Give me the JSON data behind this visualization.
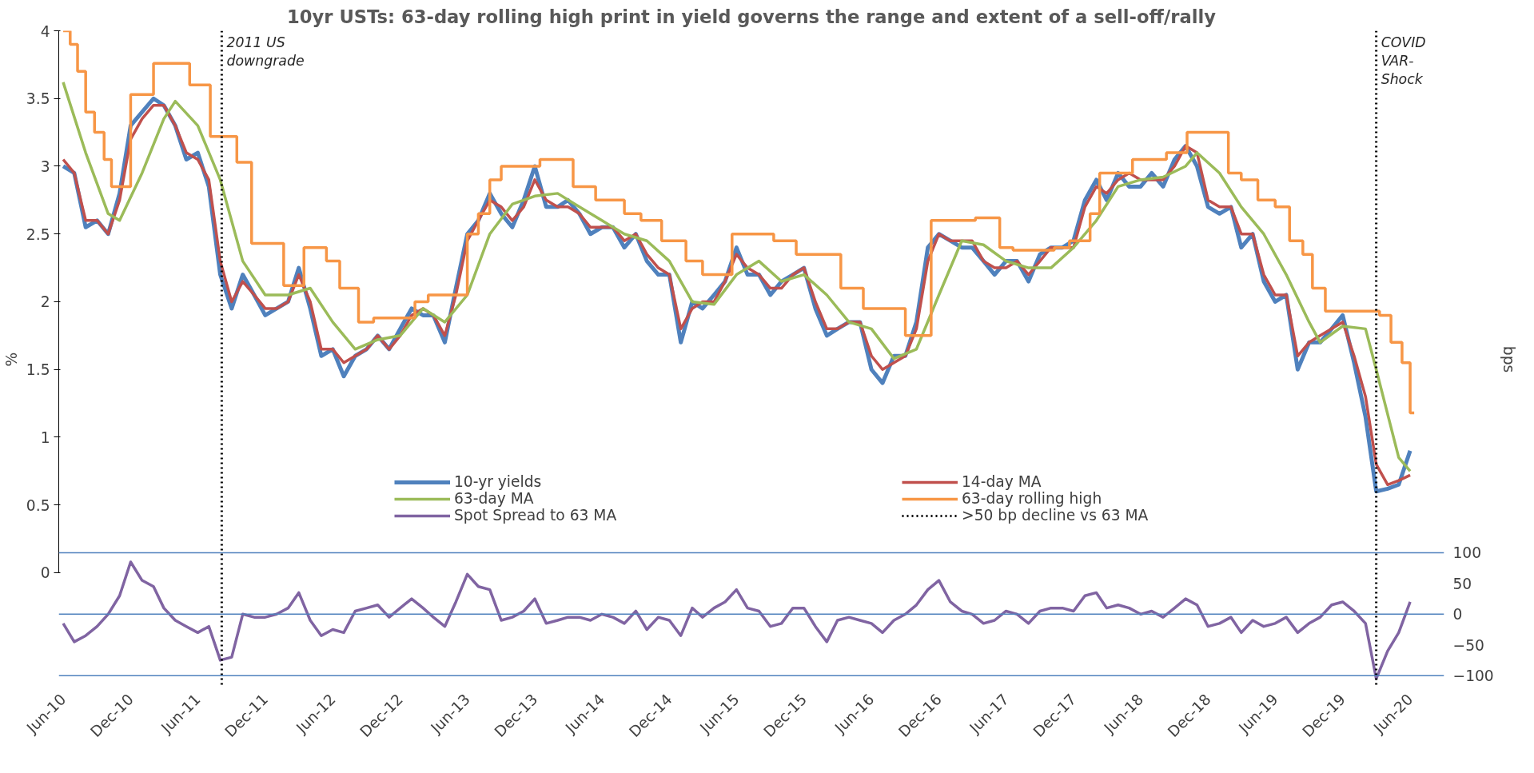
{
  "chart_data": {
    "type": "line",
    "title": "10yr USTs: 63-day rolling high print in yield governs the range and extent of a sell-off/rally",
    "ylabel": "%",
    "y2label": "bps",
    "xlim": [
      "2010-05-20",
      "2020-09-01"
    ],
    "x": [
      "2010-06",
      "2010-07",
      "2010-08",
      "2010-09",
      "2010-10",
      "2010-11",
      "2010-12",
      "2011-01",
      "2011-02",
      "2011-03",
      "2011-04",
      "2011-05",
      "2011-06",
      "2011-07",
      "2011-08",
      "2011-09",
      "2011-10",
      "2011-11",
      "2011-12",
      "2012-01",
      "2012-02",
      "2012-03",
      "2012-04",
      "2012-05",
      "2012-06",
      "2012-07",
      "2012-08",
      "2012-09",
      "2012-10",
      "2012-11",
      "2012-12",
      "2013-01",
      "2013-02",
      "2013-03",
      "2013-04",
      "2013-05",
      "2013-06",
      "2013-07",
      "2013-08",
      "2013-09",
      "2013-10",
      "2013-11",
      "2013-12",
      "2014-01",
      "2014-02",
      "2014-03",
      "2014-04",
      "2014-05",
      "2014-06",
      "2014-07",
      "2014-08",
      "2014-09",
      "2014-10",
      "2014-11",
      "2014-12",
      "2015-01",
      "2015-02",
      "2015-03",
      "2015-04",
      "2015-05",
      "2015-06",
      "2015-07",
      "2015-08",
      "2015-09",
      "2015-10",
      "2015-11",
      "2015-12",
      "2016-01",
      "2016-02",
      "2016-03",
      "2016-04",
      "2016-05",
      "2016-06",
      "2016-07",
      "2016-08",
      "2016-09",
      "2016-10",
      "2016-11",
      "2016-12",
      "2017-01",
      "2017-02",
      "2017-03",
      "2017-04",
      "2017-05",
      "2017-06",
      "2017-07",
      "2017-08",
      "2017-09",
      "2017-10",
      "2017-11",
      "2017-12",
      "2018-01",
      "2018-02",
      "2018-03",
      "2018-04",
      "2018-05",
      "2018-06",
      "2018-07",
      "2018-08",
      "2018-09",
      "2018-10",
      "2018-11",
      "2018-12",
      "2019-01",
      "2019-02",
      "2019-03",
      "2019-04",
      "2019-05",
      "2019-06",
      "2019-07",
      "2019-08",
      "2019-09",
      "2019-10",
      "2019-11",
      "2019-12",
      "2020-01",
      "2020-02",
      "2020-03",
      "2020-04",
      "2020-05",
      "2020-06"
    ],
    "ylim": [
      -0.85,
      4
    ],
    "yticks": [
      0,
      0.5,
      1,
      1.5,
      2,
      2.5,
      3,
      3.5,
      4
    ],
    "y2lim": [
      -120,
      950
    ],
    "y2ticks": [
      -100,
      -50,
      0,
      50,
      100
    ],
    "xticks": [
      {
        "value": "2010-06-01",
        "label": "Jun-10"
      },
      {
        "value": "2010-12-01",
        "label": "Dec-10"
      },
      {
        "value": "2011-06-01",
        "label": "Jun-11"
      },
      {
        "value": "2011-12-01",
        "label": "Dec-11"
      },
      {
        "value": "2012-06-01",
        "label": "Jun-12"
      },
      {
        "value": "2012-12-01",
        "label": "Dec-12"
      },
      {
        "value": "2013-06-01",
        "label": "Jun-13"
      },
      {
        "value": "2013-12-01",
        "label": "Dec-13"
      },
      {
        "value": "2014-06-01",
        "label": "Jun-14"
      },
      {
        "value": "2014-12-01",
        "label": "Dec-14"
      },
      {
        "value": "2015-06-01",
        "label": "Jun-15"
      },
      {
        "value": "2015-12-01",
        "label": "Dec-15"
      },
      {
        "value": "2016-06-01",
        "label": "Jun-16"
      },
      {
        "value": "2016-12-01",
        "label": "Dec-16"
      },
      {
        "value": "2017-06-01",
        "label": "Jun-17"
      },
      {
        "value": "2017-12-01",
        "label": "Dec-17"
      },
      {
        "value": "2018-06-01",
        "label": "Jun-18"
      },
      {
        "value": "2018-12-01",
        "label": "Dec-18"
      },
      {
        "value": "2019-06-01",
        "label": "Jun-19"
      },
      {
        "value": "2019-12-01",
        "label": "Dec-19"
      },
      {
        "value": "2020-06-01",
        "label": "Jun-20"
      }
    ],
    "grid": false,
    "legend": "bottom",
    "line_style": "solid",
    "ref_lines": [
      {
        "axis": "y2",
        "value": 100,
        "color": "#4f81bd"
      },
      {
        "axis": "y2",
        "value": 0,
        "color": "#4f81bd"
      },
      {
        "axis": "y2",
        "value": -100,
        "color": "#4f81bd"
      }
    ],
    "annotations": [
      {
        "text": "2011 US\ndowngrade",
        "x": "2011-08-05",
        "y": 4
      },
      {
        "text": "COVID\nVAR-\nShock",
        "x": "2020-03-01",
        "y": 4
      }
    ],
    "series": [
      {
        "name": "10-yr yields",
        "color": "#4f81bd",
        "values": [
          3.0,
          2.95,
          2.55,
          2.6,
          2.5,
          2.8,
          3.3,
          3.4,
          3.5,
          3.45,
          3.3,
          3.05,
          3.1,
          2.85,
          2.2,
          1.95,
          2.2,
          2.05,
          1.9,
          1.95,
          2.0,
          2.25,
          1.95,
          1.6,
          1.65,
          1.45,
          1.6,
          1.65,
          1.75,
          1.65,
          1.8,
          1.95,
          1.9,
          1.9,
          1.7,
          2.1,
          2.5,
          2.6,
          2.8,
          2.65,
          2.55,
          2.75,
          3.0,
          2.7,
          2.7,
          2.75,
          2.65,
          2.5,
          2.55,
          2.55,
          2.4,
          2.5,
          2.3,
          2.2,
          2.2,
          1.7,
          2.0,
          1.95,
          2.05,
          2.15,
          2.4,
          2.2,
          2.2,
          2.05,
          2.15,
          2.2,
          2.25,
          1.95,
          1.75,
          1.8,
          1.85,
          1.85,
          1.5,
          1.4,
          1.6,
          1.6,
          1.85,
          2.4,
          2.5,
          2.45,
          2.4,
          2.4,
          2.3,
          2.2,
          2.3,
          2.3,
          2.15,
          2.35,
          2.4,
          2.4,
          2.45,
          2.75,
          2.9,
          2.75,
          2.95,
          2.85,
          2.85,
          2.95,
          2.85,
          3.05,
          3.15,
          3.0,
          2.7,
          2.65,
          2.7,
          2.4,
          2.5,
          2.15,
          2.0,
          2.05,
          1.5,
          1.7,
          1.7,
          1.8,
          1.9,
          1.55,
          1.15,
          0.6,
          0.62,
          0.65,
          0.9
        ]
      },
      {
        "name": "14-day MA",
        "color": "#c0504d",
        "values": [
          3.05,
          2.95,
          2.6,
          2.6,
          2.5,
          2.75,
          3.2,
          3.35,
          3.45,
          3.45,
          3.3,
          3.1,
          3.05,
          2.9,
          2.3,
          2.0,
          2.15,
          2.05,
          1.95,
          1.95,
          2.0,
          2.2,
          2.0,
          1.65,
          1.65,
          1.55,
          1.6,
          1.65,
          1.75,
          1.65,
          1.75,
          1.9,
          1.95,
          1.9,
          1.75,
          2.05,
          2.45,
          2.6,
          2.75,
          2.7,
          2.6,
          2.7,
          2.9,
          2.75,
          2.7,
          2.7,
          2.65,
          2.55,
          2.55,
          2.55,
          2.45,
          2.5,
          2.35,
          2.25,
          2.2,
          1.8,
          1.95,
          2.0,
          2.0,
          2.15,
          2.35,
          2.25,
          2.2,
          2.1,
          2.1,
          2.2,
          2.25,
          2.0,
          1.8,
          1.8,
          1.85,
          1.85,
          1.6,
          1.5,
          1.55,
          1.6,
          1.8,
          2.3,
          2.5,
          2.45,
          2.45,
          2.45,
          2.3,
          2.25,
          2.25,
          2.3,
          2.2,
          2.3,
          2.4,
          2.4,
          2.4,
          2.7,
          2.85,
          2.8,
          2.9,
          2.95,
          2.9,
          2.9,
          2.9,
          3.0,
          3.15,
          3.1,
          2.75,
          2.7,
          2.7,
          2.5,
          2.5,
          2.2,
          2.05,
          2.05,
          1.6,
          1.7,
          1.75,
          1.8,
          1.85,
          1.6,
          1.3,
          0.8,
          0.65,
          0.68,
          0.72
        ]
      },
      {
        "name": "63-day MA",
        "color": "#9bbb59",
        "x": [
          "2010-06",
          "2010-08",
          "2010-10",
          "2010-11",
          "2011-01",
          "2011-03",
          "2011-04",
          "2011-06",
          "2011-08",
          "2011-10",
          "2011-12",
          "2012-02",
          "2012-04",
          "2012-06",
          "2012-08",
          "2012-10",
          "2012-12",
          "2013-02",
          "2013-04",
          "2013-06",
          "2013-08",
          "2013-10",
          "2013-12",
          "2014-02",
          "2014-04",
          "2014-06",
          "2014-08",
          "2014-10",
          "2014-12",
          "2015-02",
          "2015-04",
          "2015-06",
          "2015-08",
          "2015-10",
          "2015-12",
          "2016-02",
          "2016-04",
          "2016-06",
          "2016-08",
          "2016-10",
          "2016-12",
          "2017-02",
          "2017-04",
          "2017-06",
          "2017-08",
          "2017-10",
          "2017-12",
          "2018-02",
          "2018-04",
          "2018-06",
          "2018-08",
          "2018-10",
          "2018-11",
          "2019-01",
          "2019-03",
          "2019-05",
          "2019-07",
          "2019-09",
          "2019-10",
          "2019-12",
          "2020-02",
          "2020-03",
          "2020-05",
          "2020-06"
        ],
        "values": [
          3.62,
          3.1,
          2.65,
          2.6,
          2.95,
          3.35,
          3.48,
          3.3,
          2.9,
          2.3,
          2.05,
          2.05,
          2.1,
          1.85,
          1.65,
          1.72,
          1.75,
          1.95,
          1.85,
          2.05,
          2.5,
          2.72,
          2.78,
          2.8,
          2.7,
          2.6,
          2.5,
          2.45,
          2.3,
          2.0,
          1.98,
          2.2,
          2.3,
          2.15,
          2.2,
          2.05,
          1.85,
          1.8,
          1.58,
          1.65,
          2.05,
          2.45,
          2.42,
          2.3,
          2.25,
          2.25,
          2.4,
          2.6,
          2.85,
          2.9,
          2.92,
          3.0,
          3.1,
          2.95,
          2.7,
          2.5,
          2.2,
          1.85,
          1.7,
          1.82,
          1.8,
          1.5,
          0.85,
          0.75
        ]
      },
      {
        "name": "63-day rolling high",
        "color": "#f79646",
        "type": "step",
        "x": [
          "2010-06-01",
          "2010-06-20",
          "2010-07-10",
          "2010-08-01",
          "2010-08-25",
          "2010-09-20",
          "2010-10-10",
          "2010-12-01",
          "2011-02-01",
          "2011-05-10",
          "2011-07-05",
          "2011-09-15",
          "2011-10-25",
          "2012-01-20",
          "2012-03-15",
          "2012-05-15",
          "2012-06-20",
          "2012-08-10",
          "2012-09-20",
          "2013-01-10",
          "2013-02-15",
          "2013-06-01",
          "2013-07-01",
          "2013-08-01",
          "2013-09-01",
          "2013-12-15",
          "2014-03-15",
          "2014-05-15",
          "2014-08-01",
          "2014-09-15",
          "2014-11-10",
          "2015-01-15",
          "2015-03-01",
          "2015-05-20",
          "2015-09-10",
          "2015-11-10",
          "2016-03-10",
          "2016-05-10",
          "2016-09-01",
          "2016-11-10",
          "2017-03-10",
          "2017-05-15",
          "2017-06-20",
          "2017-10-10",
          "2017-11-20",
          "2018-01-15",
          "2018-02-10",
          "2018-05-10",
          "2018-08-10",
          "2018-10-05",
          "2019-01-25",
          "2019-03-01",
          "2019-04-15",
          "2019-06-01",
          "2019-07-10",
          "2019-08-15",
          "2019-09-10",
          "2019-10-15",
          "2020-03-10",
          "2020-04-10",
          "2020-05-10",
          "2020-06-01",
          "2020-06-12"
        ],
        "values": [
          4.0,
          3.9,
          3.7,
          3.4,
          3.25,
          3.05,
          2.85,
          3.53,
          3.76,
          3.6,
          3.22,
          3.03,
          2.43,
          2.12,
          2.4,
          2.3,
          2.1,
          1.85,
          1.88,
          2.0,
          2.05,
          2.5,
          2.65,
          2.9,
          3.0,
          3.05,
          2.85,
          2.75,
          2.65,
          2.6,
          2.45,
          2.3,
          2.2,
          2.5,
          2.45,
          2.35,
          2.1,
          1.95,
          1.75,
          2.6,
          2.62,
          2.4,
          2.38,
          2.4,
          2.45,
          2.65,
          2.95,
          3.05,
          3.1,
          3.25,
          2.95,
          2.9,
          2.75,
          2.7,
          2.45,
          2.35,
          2.1,
          1.93,
          1.9,
          1.7,
          1.55,
          1.18,
          1.18
        ]
      },
      {
        "name": "Spot Spread to 63 MA",
        "color": "#8064a2",
        "axis": "y2",
        "values": [
          -15,
          -45,
          -35,
          -20,
          0,
          30,
          85,
          55,
          45,
          10,
          -10,
          -20,
          -30,
          -20,
          -75,
          -70,
          0,
          -5,
          -5,
          0,
          10,
          35,
          -10,
          -35,
          -25,
          -30,
          5,
          10,
          15,
          -5,
          10,
          25,
          10,
          -5,
          -20,
          20,
          65,
          45,
          40,
          -10,
          -5,
          5,
          25,
          -15,
          -10,
          -5,
          -5,
          -10,
          0,
          -5,
          -15,
          5,
          -25,
          -5,
          -10,
          -35,
          10,
          -5,
          10,
          20,
          40,
          10,
          5,
          -20,
          -15,
          10,
          10,
          -20,
          -45,
          -10,
          -5,
          -10,
          -15,
          -30,
          -10,
          0,
          15,
          40,
          55,
          20,
          5,
          0,
          -15,
          -10,
          5,
          0,
          -15,
          5,
          10,
          10,
          5,
          30,
          35,
          10,
          15,
          10,
          0,
          5,
          -5,
          10,
          25,
          15,
          -20,
          -15,
          -5,
          -30,
          -10,
          -20,
          -15,
          -5,
          -30,
          -15,
          -5,
          15,
          20,
          5,
          -15,
          -105,
          -60,
          -30,
          20
        ]
      },
      {
        "name": ">50 bp decline vs 63 MA",
        "color": "#000000",
        "line_style": "dotted",
        "x": [
          "2011-08-05",
          "2011-08-05"
        ],
        "values": [
          4,
          -0.85
        ]
      },
      {
        "color": "#000000",
        "line_style": "dotted",
        "x": [
          "2020-03-01",
          "2020-03-01"
        ],
        "values": [
          4,
          -0.85
        ]
      }
    ]
  }
}
